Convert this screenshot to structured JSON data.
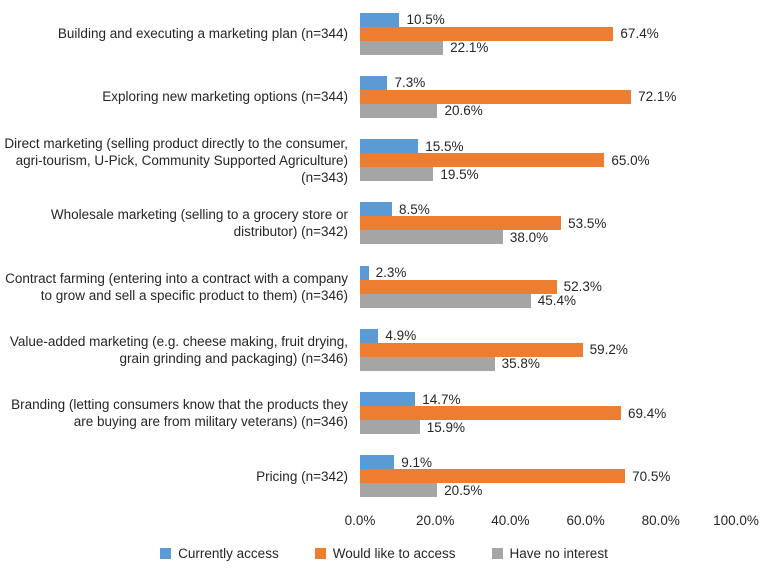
{
  "chart_data": {
    "type": "bar",
    "orientation": "horizontal",
    "categories": [
      "Building and executing a marketing plan (n=344)",
      "Exploring new marketing options (n=344)",
      "Direct marketing (selling product directly to the consumer, agri-tourism, U-Pick, Community Supported Agriculture) (n=343)",
      "Wholesale marketing (selling to a grocery store or distributor) (n=342)",
      "Contract farming (entering into a contract with a company to grow and sell a specific product to them) (n=346)",
      "Value-added marketing (e.g. cheese making, fruit drying, grain grinding and packaging) (n=346)",
      "Branding (letting consumers know that the products they are buying are from military veterans) (n=346)",
      "Pricing (n=342)"
    ],
    "series": [
      {
        "name": "Currently access",
        "color": "#5B9BD5",
        "values": [
          10.5,
          7.3,
          15.5,
          8.5,
          2.3,
          4.9,
          14.7,
          9.1
        ]
      },
      {
        "name": "Would like to access",
        "color": "#ED7D31",
        "values": [
          67.4,
          72.1,
          65.0,
          53.5,
          52.3,
          59.2,
          69.4,
          70.5
        ]
      },
      {
        "name": "Have no interest",
        "color": "#A5A5A5",
        "values": [
          22.1,
          20.6,
          19.5,
          38.0,
          45.4,
          35.8,
          15.9,
          20.5
        ]
      }
    ],
    "value_label_format": "one_decimal_percent",
    "x_axis": {
      "min": 0,
      "max": 100,
      "tick_labels": [
        "0.0%",
        "20.0%",
        "40.0%",
        "60.0%",
        "80.0%",
        "100.0%"
      ]
    },
    "legend": {
      "position": "bottom",
      "entries": [
        "Currently access",
        "Would like to access",
        "Have no interest"
      ]
    },
    "grid": false
  },
  "colors": {
    "background": "#FFFFFF",
    "text": "#262626"
  }
}
